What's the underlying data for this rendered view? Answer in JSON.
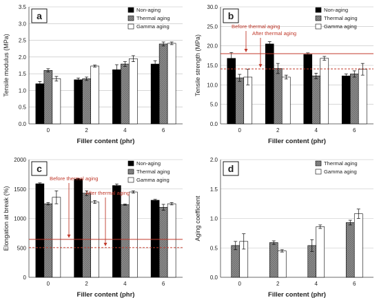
{
  "chart_data": [
    {
      "panel": "a",
      "type": "bar",
      "xlabel": "Filler content (phr)",
      "ylabel": "Tensile modulus (MPa)",
      "categories": [
        "0",
        "2",
        "4",
        "6"
      ],
      "ylim": [
        0,
        3.5
      ],
      "yticks": [
        "0.0",
        "0.5",
        "1.0",
        "1.5",
        "2.0",
        "2.5",
        "3.0",
        "3.5"
      ],
      "legend_position": "top-right",
      "series": [
        {
          "name": "Non-aging",
          "values": [
            1.2,
            1.32,
            1.62,
            1.79
          ],
          "errors": [
            0.07,
            0.05,
            0.15,
            0.1
          ]
        },
        {
          "name": "Thermal aging",
          "values": [
            1.6,
            1.35,
            1.79,
            2.39
          ],
          "errors": [
            0.05,
            0.05,
            0.07,
            0.06
          ]
        },
        {
          "name": "Gamma aging",
          "values": [
            1.35,
            1.73,
            1.95,
            2.41
          ],
          "errors": [
            0.07,
            0.03,
            0.09,
            0.04
          ]
        }
      ]
    },
    {
      "panel": "b",
      "type": "bar",
      "xlabel": "Filler content (phr)",
      "ylabel": "Tensile strength (MPa)",
      "categories": [
        "0",
        "2",
        "4",
        "6"
      ],
      "ylim": [
        0,
        30
      ],
      "yticks": [
        "0.0",
        "5.0",
        "10.0",
        "15.0",
        "20.0",
        "25.0",
        "30.0"
      ],
      "legend_position": "top-right",
      "reference_lines": [
        {
          "label": "Before thermal aging",
          "value": 18.0,
          "style": "solid"
        },
        {
          "label": "After thermal aging",
          "value": 14.1,
          "style": "dashed"
        }
      ],
      "series": [
        {
          "name": "Non-aging",
          "values": [
            16.8,
            20.5,
            17.8,
            12.3
          ],
          "errors": [
            1.5,
            0.6,
            0.4,
            0.5
          ]
        },
        {
          "name": "Thermal aging",
          "values": [
            11.8,
            14.2,
            12.3,
            12.8
          ],
          "errors": [
            0.9,
            1.3,
            0.7,
            0.8
          ]
        },
        {
          "name": "Gamma aging",
          "values": [
            12.0,
            12.0,
            16.8,
            14.0
          ],
          "errors": [
            2.0,
            0.5,
            0.5,
            1.5
          ]
        }
      ]
    },
    {
      "panel": "c",
      "type": "bar",
      "xlabel": "Filler content (phr)",
      "ylabel": "Elongation at break (%)",
      "categories": [
        "0",
        "2",
        "4",
        "6"
      ],
      "ylim": [
        0,
        2000
      ],
      "yticks": [
        "0",
        "500",
        "1000",
        "1500",
        "2000"
      ],
      "legend_position": "top-right",
      "reference_lines": [
        {
          "label": "Before thermal aging",
          "value": 645,
          "style": "solid"
        },
        {
          "label": "After thermal aging",
          "value": 505,
          "style": "dashed"
        }
      ],
      "series": [
        {
          "name": "Non-aging",
          "values": [
            1590,
            1670,
            1560,
            1310
          ],
          "errors": [
            15,
            10,
            25,
            15
          ]
        },
        {
          "name": "Thermal aging",
          "values": [
            1250,
            1430,
            1235,
            1190
          ],
          "errors": [
            20,
            40,
            10,
            50
          ]
        },
        {
          "name": "Gamma aging",
          "values": [
            1360,
            1280,
            1450,
            1250
          ],
          "errors": [
            110,
            25,
            20,
            20
          ]
        }
      ]
    },
    {
      "panel": "d",
      "type": "bar",
      "xlabel": "Filler content (phr)",
      "ylabel": "Aging coefficient",
      "categories": [
        "0",
        "2",
        "4",
        "6"
      ],
      "ylim": [
        0,
        2
      ],
      "yticks": [
        "0.0",
        "0.5",
        "1.0",
        "1.5",
        "2.0"
      ],
      "legend_position": "top-right",
      "series": [
        {
          "name": "Thermal aging",
          "values": [
            0.54,
            0.59,
            0.54,
            0.93
          ],
          "errors": [
            0.07,
            0.03,
            0.1,
            0.04
          ]
        },
        {
          "name": "Gamma aging",
          "values": [
            0.61,
            0.45,
            0.86,
            1.08
          ],
          "errors": [
            0.13,
            0.02,
            0.03,
            0.08
          ]
        }
      ]
    }
  ],
  "colors": {
    "Non-aging": "#000000",
    "Thermal aging": "#8c8c8c",
    "Gamma aging": "#ffffff",
    "reference": "#c0392b",
    "grid": "#bdbdbd"
  }
}
